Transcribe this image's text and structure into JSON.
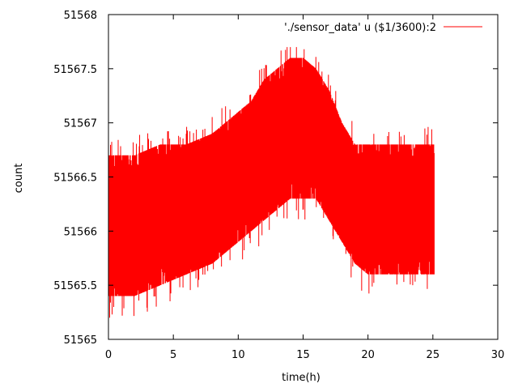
{
  "chart_data": {
    "type": "line",
    "title": "",
    "xlabel": "time(h)",
    "ylabel": "count",
    "xlim": [
      0,
      30
    ],
    "ylim": [
      51565,
      51568
    ],
    "x_ticks": [
      0,
      5,
      10,
      15,
      20,
      25,
      30
    ],
    "y_ticks": [
      51565,
      51565.5,
      51566,
      51566.5,
      51567,
      51567.5,
      51568
    ],
    "x_tick_labels": [
      "0",
      "5",
      "10",
      "15",
      "20",
      "25",
      "30"
    ],
    "y_tick_labels": [
      "51565",
      "51565.5",
      "51566",
      "51566.5",
      "51567",
      "51567.5",
      "51568"
    ],
    "grid": false,
    "legend_position": "top-right",
    "series": [
      {
        "name": "'./sensor_data' u ($1/3600):2",
        "color": "#ff0000",
        "envelope": {
          "x": [
            0,
            2,
            4,
            6,
            8,
            10,
            11,
            12,
            13,
            14,
            15,
            16,
            17,
            18,
            19,
            20,
            22,
            24,
            25.1
          ],
          "upper": [
            51566.7,
            51566.7,
            51566.8,
            51566.8,
            51566.9,
            51567.1,
            51567.2,
            51567.4,
            51567.5,
            51567.6,
            51567.6,
            51567.5,
            51567.3,
            51567.0,
            51566.8,
            51566.8,
            51566.8,
            51566.8,
            51566.8
          ],
          "lower": [
            51565.4,
            51565.4,
            51565.5,
            51565.6,
            51565.7,
            51565.9,
            51566.0,
            51566.1,
            51566.2,
            51566.3,
            51566.3,
            51566.3,
            51566.1,
            51565.9,
            51565.7,
            51565.6,
            51565.6,
            51565.6,
            51565.6
          ],
          "spike_max": 51567.7,
          "spike_min": 51565.1
        }
      }
    ]
  }
}
